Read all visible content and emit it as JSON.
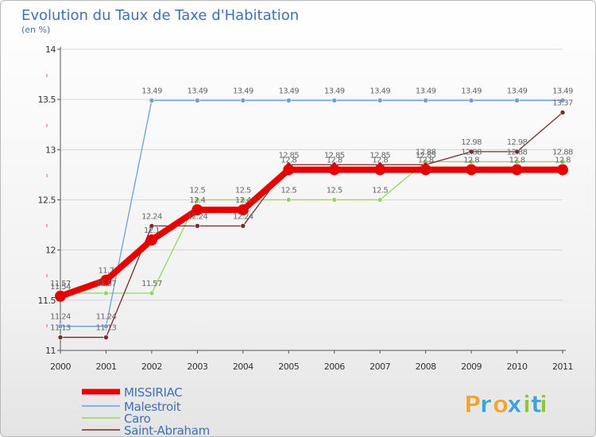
{
  "chart_data": {
    "type": "line",
    "title": "Evolution du Taux de Taxe d'Habitation",
    "subtitle": "(en %)",
    "xlabel": "",
    "ylabel": "(en %)",
    "x": [
      "2000",
      "2001",
      "2002",
      "2003",
      "2004",
      "2005",
      "2006",
      "2007",
      "2008",
      "2009",
      "2010",
      "2011"
    ],
    "ylim": [
      11,
      14
    ],
    "yticks": [
      11,
      11.5,
      12,
      12.5,
      13,
      13.5,
      14
    ],
    "ytick_labels": [
      "11",
      "11.5",
      "12",
      "12.5",
      "13",
      "13.5",
      "14"
    ],
    "legend_position": "bottom-left",
    "series": [
      {
        "name": "MISSIRIAC",
        "color": "#e60000",
        "values": [
          11.54,
          11.7,
          12.1,
          12.4,
          12.4,
          12.8,
          12.8,
          12.8,
          12.8,
          12.8,
          12.8,
          12.8
        ],
        "labels": [
          "11.54",
          "11.7",
          "12.1",
          "12.4",
          "12.4",
          "12.8",
          "12.8",
          "12.8",
          "12.8",
          "12.8",
          "12.8",
          "12.8"
        ]
      },
      {
        "name": "Malestroit",
        "color": "#6f9fd4",
        "values": [
          11.24,
          11.24,
          13.49,
          13.49,
          13.49,
          13.49,
          13.49,
          13.49,
          13.49,
          13.49,
          13.49,
          13.49
        ],
        "labels": [
          "11.24",
          "11.24",
          "13.49",
          "13.49",
          "13.49",
          "13.49",
          "13.49",
          "13.49",
          "13.49",
          "13.49",
          "13.49",
          "13.49"
        ]
      },
      {
        "name": "Caro",
        "color": "#8fd85a",
        "values": [
          11.57,
          11.57,
          11.57,
          12.5,
          12.5,
          12.5,
          12.5,
          12.5,
          12.88,
          12.88,
          12.88,
          12.88
        ],
        "labels": [
          "11.57",
          "11.57",
          "11.57",
          "12.5",
          "12.5",
          "12.5",
          "12.5",
          "12.5",
          "12.88",
          "12.88",
          "12.88",
          "12.88"
        ]
      },
      {
        "name": "Saint-Abraham",
        "color": "#7a2a2a",
        "values": [
          11.13,
          11.13,
          12.24,
          12.24,
          12.24,
          12.85,
          12.85,
          12.85,
          12.85,
          12.98,
          12.98,
          13.37
        ],
        "labels": [
          "11.13",
          "11.13",
          "12.24",
          "12.24",
          "12.24",
          "12.85",
          "12.85",
          "12.85",
          "12.85",
          "12.98",
          "12.98",
          "13.37"
        ]
      }
    ]
  },
  "logo": {
    "letters": [
      "P",
      "r",
      "o",
      "x",
      "i",
      "t",
      "i"
    ],
    "colors": [
      "#f2a33a",
      "#3ea3dc",
      "#f2a33a",
      "#3ea3dc",
      "#8fc440",
      "#3ea3dc",
      "#8fc440"
    ],
    "text": "Proxiti"
  }
}
